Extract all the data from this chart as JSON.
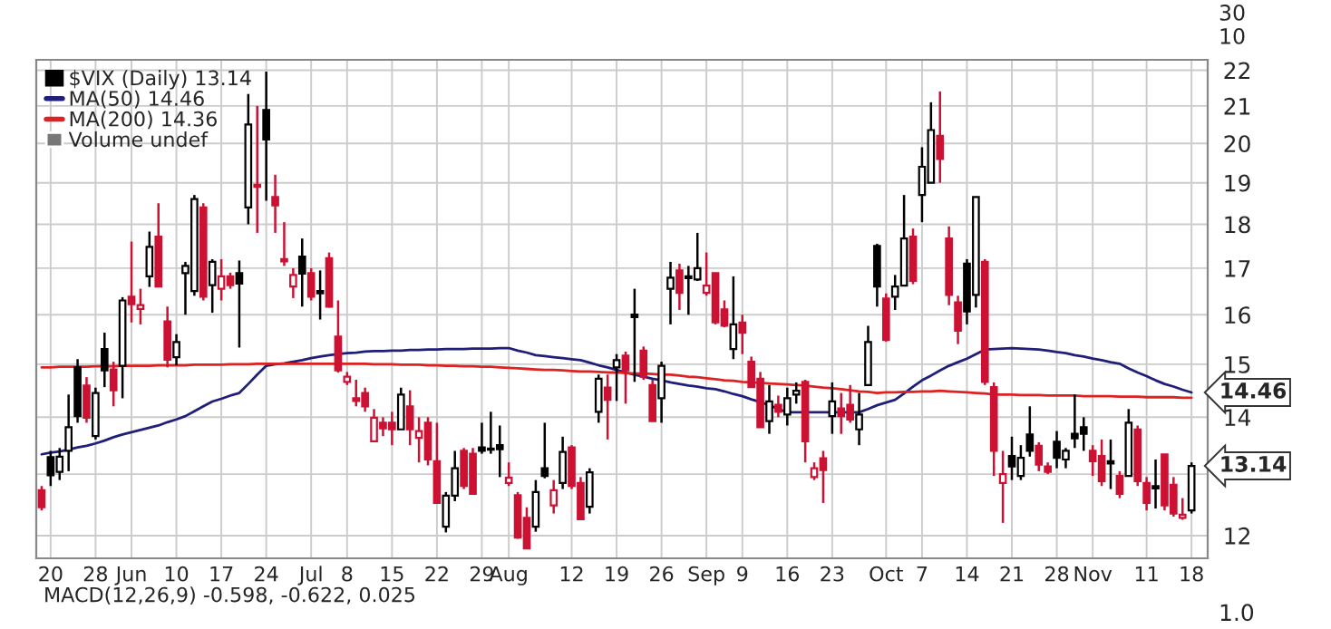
{
  "chart_data": {
    "type": "candlestick",
    "categories": [
      null,
      "20",
      null,
      null,
      null,
      null,
      "28",
      null,
      null,
      null,
      "Jun",
      null,
      null,
      null,
      null,
      "10",
      null,
      null,
      null,
      null,
      "17",
      null,
      null,
      null,
      null,
      "24",
      null,
      null,
      null,
      null,
      "Jul",
      null,
      null,
      null,
      "8",
      null,
      null,
      null,
      null,
      "15",
      null,
      null,
      null,
      null,
      "22",
      null,
      null,
      null,
      null,
      "29",
      null,
      null,
      "Aug",
      null,
      null,
      null,
      null,
      null,
      null,
      "12",
      null,
      null,
      null,
      null,
      "19",
      null,
      null,
      null,
      null,
      "26",
      null,
      null,
      null,
      null,
      "Sep",
      null,
      null,
      null,
      "9",
      null,
      null,
      null,
      null,
      "16",
      null,
      null,
      null,
      null,
      "23",
      null,
      null,
      null,
      null,
      null,
      "Oct",
      null,
      null,
      null,
      "7",
      null,
      null,
      null,
      null,
      "14",
      null,
      null,
      null,
      null,
      "21",
      null,
      null,
      null,
      null,
      "28",
      null,
      null,
      null,
      "Nov",
      null,
      null,
      null,
      null,
      null,
      "11",
      null,
      null,
      null,
      null,
      "18"
    ],
    "series": [
      {
        "name": "$VIX (Daily) 13.14",
        "ohlc": [
          [
            12.73,
            12.8,
            12.4,
            12.45
          ],
          [
            13.29,
            13.4,
            12.8,
            12.98
          ],
          [
            13.04,
            13.45,
            12.9,
            13.3
          ],
          [
            13.4,
            14.42,
            13.05,
            13.82
          ],
          [
            14.94,
            15.1,
            13.9,
            14.02
          ],
          [
            14.59,
            14.75,
            13.9,
            13.99
          ],
          [
            13.66,
            14.55,
            13.6,
            14.45
          ],
          [
            15.3,
            15.63,
            14.56,
            14.88
          ],
          [
            14.9,
            15.05,
            14.2,
            14.5
          ],
          [
            14.97,
            16.37,
            14.35,
            16.3
          ],
          [
            16.38,
            17.6,
            15.84,
            16.22
          ],
          [
            16.12,
            16.55,
            15.8,
            16.2
          ],
          [
            16.82,
            17.83,
            16.59,
            17.48
          ],
          [
            17.71,
            18.5,
            16.6,
            16.6
          ],
          [
            15.86,
            16.17,
            14.94,
            15.09
          ],
          [
            15.14,
            15.6,
            14.98,
            15.44
          ],
          [
            16.89,
            17.14,
            16.0,
            17.05
          ],
          [
            16.5,
            18.7,
            16.4,
            18.6
          ],
          [
            18.4,
            18.5,
            16.3,
            16.38
          ],
          [
            16.63,
            17.2,
            16.04,
            17.14
          ],
          [
            16.55,
            17.2,
            16.3,
            16.82
          ],
          [
            16.82,
            16.9,
            16.55,
            16.63
          ],
          [
            16.89,
            17.17,
            15.33,
            16.66
          ],
          [
            18.4,
            21.33,
            18.0,
            20.5
          ],
          [
            18.95,
            21.0,
            17.8,
            18.9
          ],
          [
            20.89,
            21.96,
            18.56,
            20.1
          ],
          [
            18.65,
            19.2,
            17.8,
            18.45
          ],
          [
            17.2,
            18.05,
            17.05,
            17.15
          ],
          [
            16.6,
            17.0,
            16.35,
            16.85
          ],
          [
            17.26,
            17.67,
            16.17,
            16.88
          ],
          [
            16.89,
            17.0,
            16.3,
            16.38
          ],
          [
            16.5,
            16.95,
            15.9,
            16.45
          ],
          [
            17.22,
            17.35,
            16.15,
            16.17
          ],
          [
            15.55,
            16.3,
            14.84,
            14.88
          ],
          [
            14.66,
            14.85,
            14.6,
            14.76
          ],
          [
            14.35,
            14.7,
            14.2,
            14.3
          ],
          [
            14.45,
            14.55,
            14.1,
            14.2
          ],
          [
            13.57,
            14.15,
            13.57,
            13.99
          ],
          [
            13.9,
            14.0,
            13.66,
            13.8
          ],
          [
            13.9,
            14.1,
            13.5,
            13.78
          ],
          [
            13.78,
            14.55,
            13.78,
            14.42
          ],
          [
            14.2,
            14.5,
            13.5,
            13.78
          ],
          [
            13.63,
            14.0,
            13.2,
            13.75
          ],
          [
            13.9,
            14.0,
            13.15,
            13.25
          ],
          [
            13.22,
            13.9,
            12.52,
            12.52
          ],
          [
            12.14,
            12.7,
            12.05,
            12.64
          ],
          [
            12.64,
            13.4,
            12.55,
            13.1
          ],
          [
            13.4,
            13.45,
            12.75,
            12.8
          ],
          [
            13.35,
            13.45,
            12.67,
            12.67
          ],
          [
            13.46,
            13.9,
            13.35,
            13.4
          ],
          [
            13.44,
            14.1,
            13.35,
            13.42
          ],
          [
            13.5,
            13.85,
            12.95,
            13.43
          ],
          [
            12.85,
            13.2,
            12.8,
            12.94
          ],
          [
            12.65,
            12.7,
            11.95,
            11.97
          ],
          [
            12.28,
            12.45,
            11.8,
            11.8
          ],
          [
            12.14,
            12.9,
            12.06,
            12.7
          ],
          [
            13.1,
            13.9,
            12.93,
            12.97
          ],
          [
            12.48,
            12.9,
            12.35,
            12.73
          ],
          [
            12.85,
            13.65,
            12.75,
            13.38
          ],
          [
            13.46,
            13.5,
            12.75,
            12.8
          ],
          [
            12.85,
            12.95,
            12.25,
            12.26
          ],
          [
            12.46,
            13.1,
            12.35,
            13.03
          ],
          [
            14.1,
            14.8,
            13.9,
            14.72
          ],
          [
            14.55,
            14.8,
            13.6,
            14.32
          ],
          [
            14.94,
            15.2,
            14.3,
            15.08
          ],
          [
            15.17,
            15.25,
            14.25,
            14.88
          ],
          [
            16.0,
            16.55,
            14.66,
            15.95
          ],
          [
            15.27,
            15.35,
            14.7,
            14.76
          ],
          [
            14.6,
            14.7,
            13.93,
            13.93
          ],
          [
            14.35,
            15.05,
            13.9,
            14.97
          ],
          [
            16.55,
            17.14,
            15.8,
            16.79
          ],
          [
            16.95,
            17.1,
            16.1,
            16.46
          ],
          [
            16.82,
            17.05,
            16.0,
            16.78
          ],
          [
            16.75,
            17.8,
            16.72,
            17.0
          ],
          [
            16.46,
            17.35,
            16.4,
            16.62
          ],
          [
            16.89,
            16.9,
            15.8,
            15.84
          ],
          [
            16.11,
            16.3,
            15.74,
            15.77
          ],
          [
            15.3,
            16.82,
            15.1,
            15.8
          ],
          [
            15.84,
            16.0,
            15.2,
            15.63
          ],
          [
            15.05,
            15.15,
            14.55,
            14.56
          ],
          [
            14.72,
            14.85,
            13.82,
            13.82
          ],
          [
            13.93,
            14.6,
            13.7,
            14.29
          ],
          [
            14.23,
            14.4,
            14.0,
            14.1
          ],
          [
            14.05,
            14.55,
            13.85,
            14.35
          ],
          [
            14.42,
            14.65,
            14.25,
            14.49
          ],
          [
            14.66,
            14.7,
            13.2,
            13.57
          ],
          [
            12.95,
            13.2,
            12.9,
            13.1
          ],
          [
            13.27,
            13.4,
            12.52,
            13.07
          ],
          [
            14.02,
            14.65,
            13.7,
            14.29
          ],
          [
            14.16,
            14.45,
            13.7,
            14.02
          ],
          [
            14.23,
            14.6,
            13.9,
            13.96
          ],
          [
            13.78,
            14.45,
            13.5,
            14.05
          ],
          [
            14.6,
            15.77,
            14.6,
            15.44
          ],
          [
            17.5,
            17.55,
            16.17,
            16.6
          ],
          [
            16.34,
            16.45,
            15.45,
            15.48
          ],
          [
            16.38,
            16.85,
            16.1,
            16.6
          ],
          [
            16.62,
            18.7,
            16.62,
            17.67
          ],
          [
            17.71,
            17.9,
            16.65,
            16.72
          ],
          [
            18.7,
            19.9,
            18.05,
            19.4
          ],
          [
            19.0,
            21.1,
            19.0,
            20.35
          ],
          [
            20.2,
            21.4,
            19.0,
            19.6
          ],
          [
            17.67,
            17.95,
            16.2,
            16.42
          ],
          [
            16.26,
            16.4,
            15.4,
            15.67
          ],
          [
            17.1,
            17.2,
            15.8,
            16.07
          ],
          [
            16.42,
            18.65,
            16.15,
            18.65
          ],
          [
            17.14,
            17.2,
            14.6,
            14.66
          ],
          [
            14.56,
            14.65,
            12.97,
            13.4
          ],
          [
            12.85,
            13.4,
            12.2,
            13.0
          ],
          [
            13.31,
            13.65,
            12.9,
            13.13
          ],
          [
            12.97,
            13.5,
            12.9,
            13.28
          ],
          [
            13.69,
            14.2,
            13.3,
            13.4
          ],
          [
            13.49,
            13.55,
            13.05,
            13.16
          ],
          [
            13.13,
            13.2,
            13.0,
            13.04
          ],
          [
            13.56,
            13.75,
            13.1,
            13.28
          ],
          [
            13.25,
            13.45,
            13.1,
            13.4
          ],
          [
            13.7,
            14.42,
            13.45,
            13.62
          ],
          [
            13.82,
            14.0,
            13.4,
            13.7
          ],
          [
            13.4,
            13.5,
            12.97,
            13.22
          ],
          [
            13.31,
            13.6,
            12.8,
            12.88
          ],
          [
            13.22,
            13.6,
            12.75,
            13.18
          ],
          [
            12.97,
            13.05,
            12.6,
            12.67
          ],
          [
            12.97,
            14.15,
            12.97,
            13.9
          ],
          [
            13.78,
            13.85,
            12.8,
            12.88
          ],
          [
            12.85,
            12.95,
            12.4,
            12.52
          ],
          [
            12.8,
            13.25,
            12.43,
            12.76
          ],
          [
            13.34,
            13.34,
            12.4,
            12.48
          ],
          [
            12.82,
            12.95,
            12.3,
            12.35
          ],
          [
            12.28,
            12.6,
            12.25,
            12.33
          ],
          [
            12.4,
            13.2,
            12.35,
            13.14
          ]
        ],
        "colors": [
          "#cc1133",
          "#000000",
          "#000000",
          "#000000",
          "#000000",
          "#cc1133",
          "#000000",
          "#000000",
          "#cc1133",
          "#000000",
          "#cc1133",
          "#cc1133",
          "#000000",
          "#cc1133",
          "#cc1133",
          "#000000",
          "#000000",
          "#000000",
          "#cc1133",
          "#000000",
          "#cc1133",
          "#cc1133",
          "#000000",
          "#000000",
          "#cc1133",
          "#000000",
          "#cc1133",
          "#cc1133",
          "#cc1133",
          "#000000",
          "#cc1133",
          "#000000",
          "#cc1133",
          "#cc1133",
          "#cc1133",
          "#cc1133",
          "#cc1133",
          "#cc1133",
          "#cc1133",
          "#cc1133",
          "#000000",
          "#cc1133",
          "#cc1133",
          "#cc1133",
          "#cc1133",
          "#000000",
          "#000000",
          "#cc1133",
          "#cc1133",
          "#000000",
          "#000000",
          "#000000",
          "#cc1133",
          "#cc1133",
          "#cc1133",
          "#000000",
          "#000000",
          "#cc1133",
          "#000000",
          "#cc1133",
          "#cc1133",
          "#000000",
          "#000000",
          "#cc1133",
          "#000000",
          "#cc1133",
          "#000000",
          "#cc1133",
          "#cc1133",
          "#000000",
          "#000000",
          "#cc1133",
          "#000000",
          "#000000",
          "#cc1133",
          "#cc1133",
          "#cc1133",
          "#000000",
          "#cc1133",
          "#cc1133",
          "#cc1133",
          "#000000",
          "#cc1133",
          "#000000",
          "#000000",
          "#cc1133",
          "#cc1133",
          "#cc1133",
          "#000000",
          "#cc1133",
          "#cc1133",
          "#000000",
          "#000000",
          "#000000",
          "#cc1133",
          "#000000",
          "#000000",
          "#cc1133",
          "#000000",
          "#000000",
          "#cc1133",
          "#cc1133",
          "#cc1133",
          "#000000",
          "#000000",
          "#cc1133",
          "#cc1133",
          "#cc1133",
          "#000000",
          "#000000",
          "#000000",
          "#cc1133",
          "#cc1133",
          "#000000",
          "#000000",
          "#000000",
          "#000000",
          "#cc1133",
          "#cc1133",
          "#000000",
          "#cc1133",
          "#000000",
          "#cc1133",
          "#cc1133",
          "#000000",
          "#cc1133",
          "#cc1133",
          "#cc1133",
          "#000000"
        ]
      },
      {
        "type": "line",
        "name": "MA(50) 14.46",
        "color": "#1f1f7a",
        "values": [
          13.34,
          13.37,
          13.39,
          13.42,
          13.46,
          13.49,
          13.53,
          13.58,
          13.64,
          13.69,
          13.73,
          13.77,
          13.81,
          13.85,
          13.91,
          13.96,
          14.02,
          14.11,
          14.2,
          14.29,
          14.34,
          14.4,
          14.45,
          14.62,
          14.8,
          14.97,
          15.0,
          15.02,
          15.05,
          15.08,
          15.12,
          15.15,
          15.18,
          15.2,
          15.22,
          15.23,
          15.25,
          15.26,
          15.26,
          15.27,
          15.27,
          15.28,
          15.28,
          15.29,
          15.29,
          15.3,
          15.3,
          15.3,
          15.31,
          15.31,
          15.31,
          15.32,
          15.32,
          15.27,
          15.23,
          15.18,
          15.16,
          15.14,
          15.12,
          15.1,
          15.08,
          15.03,
          14.98,
          14.94,
          14.89,
          14.84,
          14.8,
          14.76,
          14.72,
          14.69,
          14.65,
          14.62,
          14.59,
          14.57,
          14.54,
          14.52,
          14.48,
          14.43,
          14.39,
          14.33,
          14.28,
          14.22,
          14.15,
          14.09,
          14.09,
          14.09,
          14.09,
          14.09,
          14.09,
          14.09,
          14.09,
          14.09,
          14.15,
          14.22,
          14.27,
          14.32,
          14.44,
          14.57,
          14.69,
          14.78,
          14.88,
          14.97,
          15.04,
          15.11,
          15.2,
          15.29,
          15.3,
          15.31,
          15.32,
          15.31,
          15.3,
          15.29,
          15.27,
          15.24,
          15.22,
          15.18,
          15.15,
          15.11,
          15.08,
          15.04,
          15.01,
          14.92,
          14.84,
          14.77,
          14.69,
          14.62,
          14.57,
          14.51,
          14.46
        ]
      },
      {
        "type": "line",
        "name": "MA(200) 14.36",
        "color": "#dd2222",
        "values": [
          14.94,
          14.94,
          14.95,
          14.95,
          14.95,
          14.95,
          14.96,
          14.96,
          14.96,
          14.97,
          14.97,
          14.97,
          14.97,
          14.98,
          14.98,
          14.98,
          14.98,
          14.99,
          14.99,
          14.99,
          14.99,
          15.0,
          15.0,
          15.0,
          15.01,
          15.01,
          15.01,
          15.01,
          15.01,
          15.01,
          15.01,
          15.01,
          15.01,
          15.01,
          15.01,
          15.01,
          15.01,
          15.0,
          15.0,
          15.0,
          14.99,
          14.99,
          14.99,
          14.98,
          14.98,
          14.97,
          14.97,
          14.96,
          14.96,
          14.95,
          14.95,
          14.94,
          14.93,
          14.92,
          14.91,
          14.9,
          14.89,
          14.89,
          14.88,
          14.87,
          14.86,
          14.86,
          14.85,
          14.84,
          14.84,
          14.83,
          14.82,
          14.82,
          14.81,
          14.8,
          14.8,
          14.78,
          14.76,
          14.75,
          14.73,
          14.71,
          14.69,
          14.68,
          14.66,
          14.65,
          14.64,
          14.63,
          14.62,
          14.61,
          14.6,
          14.59,
          14.57,
          14.55,
          14.54,
          14.52,
          14.5,
          14.48,
          14.47,
          14.45,
          14.46,
          14.46,
          14.47,
          14.47,
          14.48,
          14.48,
          14.49,
          14.48,
          14.47,
          14.46,
          14.45,
          14.44,
          14.42,
          14.42,
          14.42,
          14.41,
          14.41,
          14.41,
          14.4,
          14.4,
          14.4,
          14.4,
          14.39,
          14.39,
          14.39,
          14.39,
          14.38,
          14.38,
          14.38,
          14.37,
          14.37,
          14.37,
          14.37,
          14.36,
          14.36
        ]
      }
    ],
    "log": true,
    "ylim": [
      11.65,
      22.3
    ],
    "yticks": [
      12,
      {
        "value": 13,
        "label": null
      },
      14,
      15,
      16,
      17,
      18,
      19,
      20,
      21,
      22
    ],
    "grid": true,
    "legend": "top left",
    "annotations": [
      "Volume undef",
      {
        "text": "14.46",
        "x": "18",
        "y": 14.46
      },
      {
        "text": "13.14",
        "x": "18",
        "y": 13.14
      },
      "30",
      "10",
      "MACD(12,26,9) -0.598, -0.622, 0.025",
      "1.0"
    ]
  }
}
